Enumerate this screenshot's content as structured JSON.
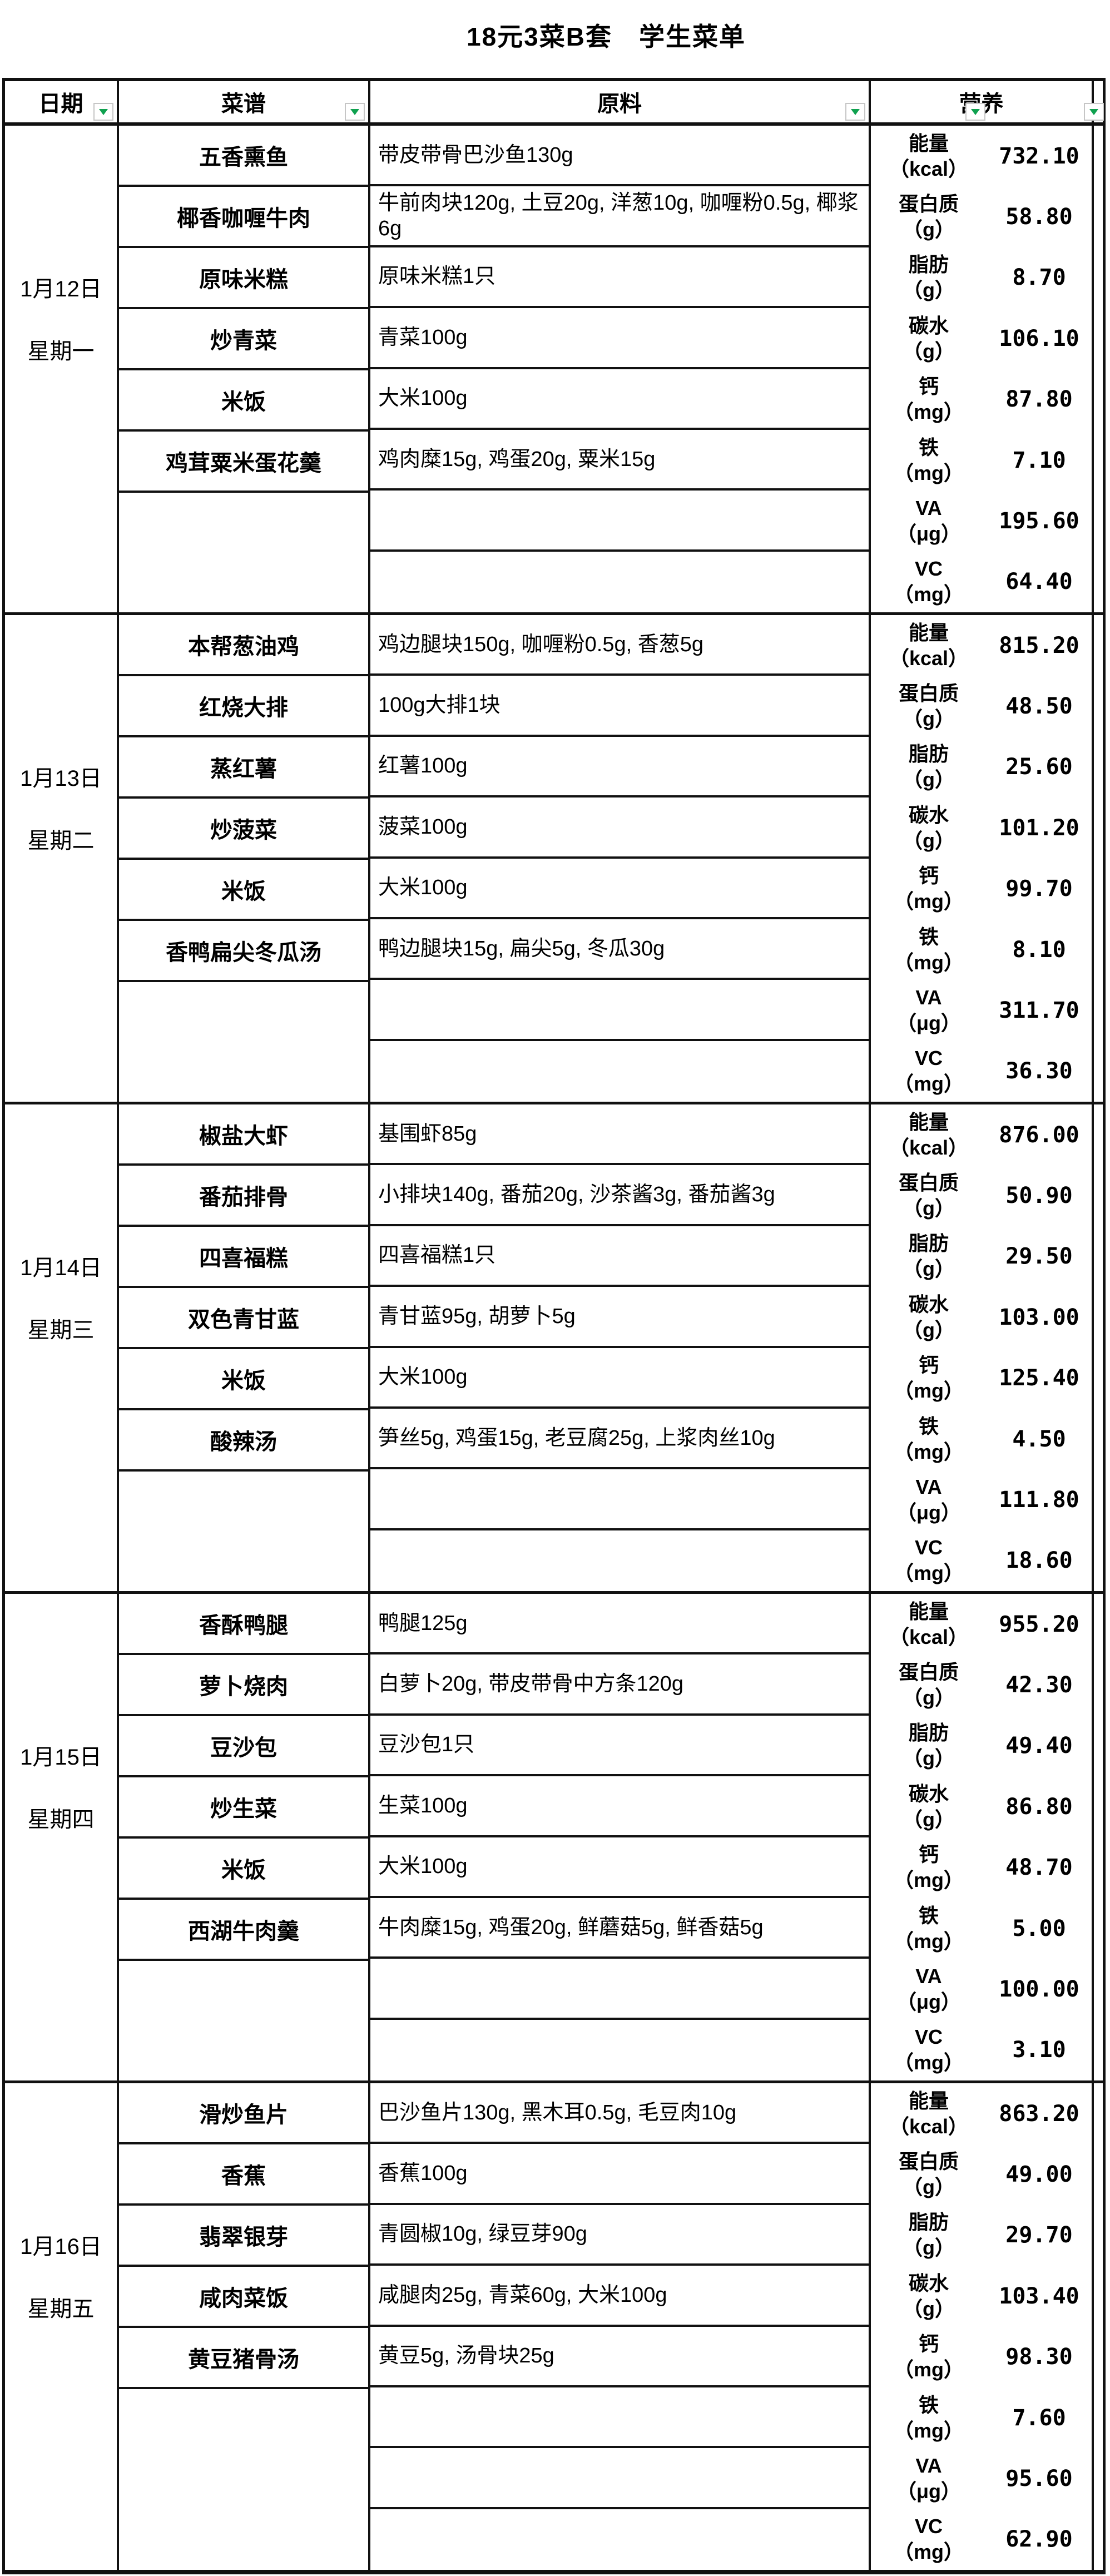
{
  "title": "18元3菜B套　学生菜单",
  "header": {
    "date": "日期",
    "menu": "菜谱",
    "ingredients": "原料",
    "nutrition": "营养"
  },
  "nutrition_labels": [
    {
      "name": "能量",
      "unit": "（kcal）"
    },
    {
      "name": "蛋白质",
      "unit": "（g）"
    },
    {
      "name": "脂肪",
      "unit": "（g）"
    },
    {
      "name": "碳水",
      "unit": "（g）"
    },
    {
      "name": "钙",
      "unit": "（mg）"
    },
    {
      "name": "铁",
      "unit": "（mg）"
    },
    {
      "name": "VA",
      "unit": "（μg）"
    },
    {
      "name": "VC",
      "unit": "（mg）"
    }
  ],
  "days": [
    {
      "date": "1月12日",
      "weekday": "星期一",
      "dishes": [
        {
          "name": "五香熏鱼",
          "ingredients": "带皮带骨巴沙鱼130g"
        },
        {
          "name": "椰香咖喱牛肉",
          "ingredients": "牛前肉块120g, 土豆20g, 洋葱10g, 咖喱粉0.5g, 椰浆6g"
        },
        {
          "name": "原味米糕",
          "ingredients": "原味米糕1只"
        },
        {
          "name": "炒青菜",
          "ingredients": "青菜100g"
        },
        {
          "name": "米饭",
          "ingredients": "大米100g"
        },
        {
          "name": "鸡茸粟米蛋花羹",
          "ingredients": "鸡肉糜15g, 鸡蛋20g, 粟米15g"
        }
      ],
      "values": [
        "732.10",
        "58.80",
        "8.70",
        "106.10",
        "87.80",
        "7.10",
        "195.60",
        "64.40"
      ]
    },
    {
      "date": "1月13日",
      "weekday": "星期二",
      "dishes": [
        {
          "name": "本帮葱油鸡",
          "ingredients": "鸡边腿块150g, 咖喱粉0.5g, 香葱5g"
        },
        {
          "name": "红烧大排",
          "ingredients": "100g大排1块"
        },
        {
          "name": "蒸红薯",
          "ingredients": "红薯100g"
        },
        {
          "name": "炒菠菜",
          "ingredients": "菠菜100g"
        },
        {
          "name": "米饭",
          "ingredients": "大米100g"
        },
        {
          "name": "香鸭扁尖冬瓜汤",
          "ingredients": "鸭边腿块15g, 扁尖5g, 冬瓜30g"
        }
      ],
      "values": [
        "815.20",
        "48.50",
        "25.60",
        "101.20",
        "99.70",
        "8.10",
        "311.70",
        "36.30"
      ]
    },
    {
      "date": "1月14日",
      "weekday": "星期三",
      "dishes": [
        {
          "name": "椒盐大虾",
          "ingredients": "基围虾85g"
        },
        {
          "name": "番茄排骨",
          "ingredients": "小排块140g, 番茄20g, 沙茶酱3g, 番茄酱3g"
        },
        {
          "name": "四喜福糕",
          "ingredients": "四喜福糕1只"
        },
        {
          "name": "双色青甘蓝",
          "ingredients": "青甘蓝95g, 胡萝卜5g"
        },
        {
          "name": "米饭",
          "ingredients": "大米100g"
        },
        {
          "name": "酸辣汤",
          "ingredients": "笋丝5g, 鸡蛋15g, 老豆腐25g, 上浆肉丝10g"
        }
      ],
      "values": [
        "876.00",
        "50.90",
        "29.50",
        "103.00",
        "125.40",
        "4.50",
        "111.80",
        "18.60"
      ]
    },
    {
      "date": "1月15日",
      "weekday": "星期四",
      "dishes": [
        {
          "name": "香酥鸭腿",
          "ingredients": "鸭腿125g"
        },
        {
          "name": "萝卜烧肉",
          "ingredients": "白萝卜20g, 带皮带骨中方条120g"
        },
        {
          "name": "豆沙包",
          "ingredients": "豆沙包1只"
        },
        {
          "name": "炒生菜",
          "ingredients": "生菜100g"
        },
        {
          "name": "米饭",
          "ingredients": "大米100g"
        },
        {
          "name": "西湖牛肉羹",
          "ingredients": "牛肉糜15g, 鸡蛋20g, 鲜蘑菇5g, 鲜香菇5g"
        }
      ],
      "values": [
        "955.20",
        "42.30",
        "49.40",
        "86.80",
        "48.70",
        "5.00",
        "100.00",
        "3.10"
      ]
    },
    {
      "date": "1月16日",
      "weekday": "星期五",
      "dishes": [
        {
          "name": "滑炒鱼片",
          "ingredients": "巴沙鱼片130g, 黑木耳0.5g, 毛豆肉10g"
        },
        {
          "name": "香蕉",
          "ingredients": "香蕉100g"
        },
        {
          "name": "翡翠银芽",
          "ingredients": "青圆椒10g, 绿豆芽90g"
        },
        {
          "name": "咸肉菜饭",
          "ingredients": "咸腿肉25g, 青菜60g, 大米100g"
        },
        {
          "name": "黄豆猪骨汤",
          "ingredients": "黄豆5g, 汤骨块25g"
        }
      ],
      "values": [
        "863.20",
        "49.00",
        "29.70",
        "103.40",
        "98.30",
        "7.60",
        "95.60",
        "62.90"
      ]
    }
  ],
  "icons": {
    "filter_arrow": "filter-dropdown-arrow",
    "arrow_color": "#0fa14f"
  }
}
